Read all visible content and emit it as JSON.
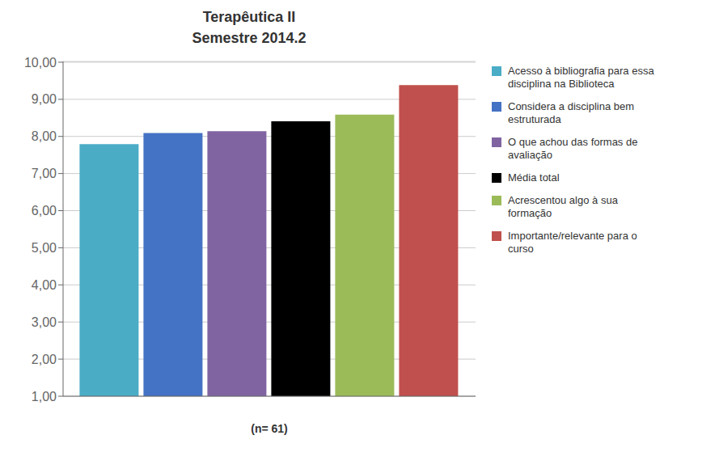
{
  "chart_data": {
    "type": "bar",
    "title": "Terapêutica II",
    "subtitle": "Semestre 2014.2",
    "xlabel": "(n= 61)",
    "categories": [
      null
    ],
    "series": [
      {
        "name": "Acesso à bibliografia para essa\ndisciplina na Biblioteca",
        "color": "#4BACC6",
        "values": [
          7.79
        ]
      },
      {
        "name": "Considera a disciplina bem\nestruturada",
        "color": "#4472C4",
        "values": [
          8.09
        ]
      },
      {
        "name": "O que achou das formas de\navaliação",
        "color": "#8064A2",
        "values": [
          8.14
        ]
      },
      {
        "name": "Média total",
        "color": "#000000",
        "values": [
          8.41
        ]
      },
      {
        "name": "Acrescentou algo à sua\nformação",
        "color": "#9BBB59",
        "values": [
          8.59
        ]
      },
      {
        "name": "Importante/relevante para o\ncurso",
        "color": "#C0504D",
        "values": [
          9.38
        ]
      }
    ],
    "ylim": [
      1.0,
      10.02
    ],
    "yticks": [
      {
        "value": 1.0,
        "label": "1,00"
      },
      {
        "value": 2.0,
        "label": "2,00"
      },
      {
        "value": 3.0,
        "label": "3,00"
      },
      {
        "value": 4.0,
        "label": "4,00"
      },
      {
        "value": 5.0,
        "label": "5,00"
      },
      {
        "value": 6.0,
        "label": "6,00"
      },
      {
        "value": 7.0,
        "label": "7,00"
      },
      {
        "value": 8.0,
        "label": "8,00"
      },
      {
        "value": 9.0,
        "label": "9,00"
      },
      {
        "value": 10.0,
        "label": "10,00"
      }
    ],
    "grid": true,
    "legend": "right"
  }
}
